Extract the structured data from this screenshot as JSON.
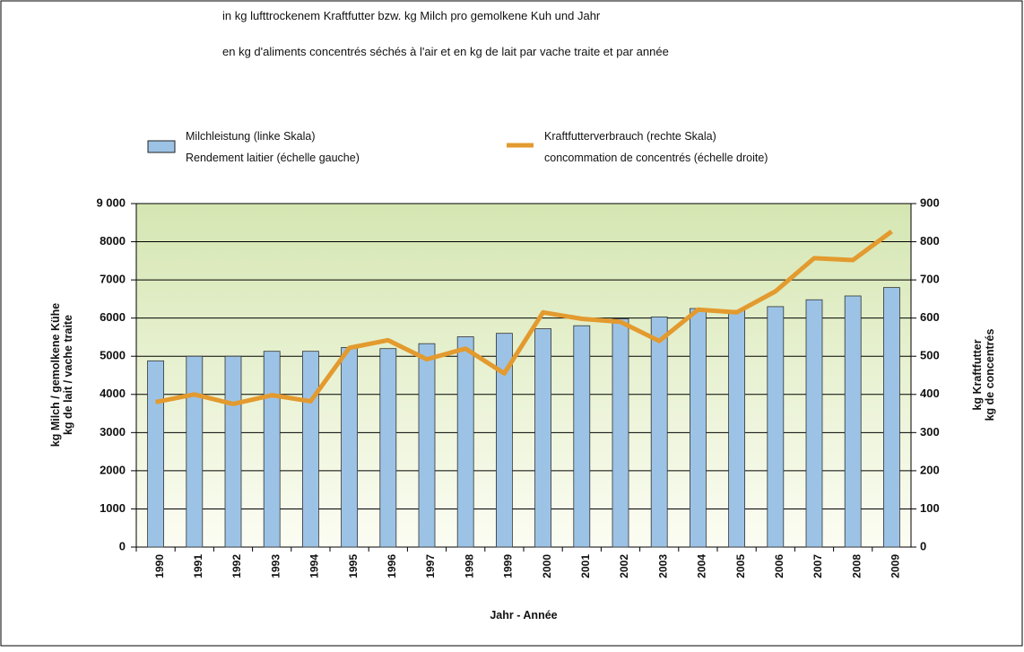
{
  "chart_data": {
    "type": "bar",
    "title": "in kg lufttrockenem Kraftfutter bzw. kg Milch pro gemolkene Kuh und Jahr",
    "subtitle": "en kg d'aliments concentrés séchés à l'air et en kg de lait par vache traite et par année",
    "xlabel": "Jahr  -  Année",
    "ylabel": [
      "kg Milch / gemolkene Kühe",
      "kg de lait / vache traite"
    ],
    "y2label": [
      "kg Kraftfutter",
      "kg de concentrés"
    ],
    "categories": [
      "1990",
      "1991",
      "1992",
      "1993",
      "1994",
      "1995",
      "1996",
      "1997",
      "1998",
      "1999",
      "2000",
      "2001",
      "2002",
      "2003",
      "2004",
      "2005",
      "2006",
      "2007",
      "2008",
      "2009"
    ],
    "series": [
      {
        "name": "Milchleistung (linke Skala)",
        "name_line2": "Rendement laitier (échelle gauche)",
        "type": "bar",
        "color": "#9cc3e5",
        "values": [
          4880,
          5000,
          5000,
          5130,
          5130,
          5230,
          5200,
          5330,
          5510,
          5600,
          5720,
          5800,
          5980,
          6030,
          6250,
          6200,
          6300,
          6480,
          6580,
          6800
        ]
      },
      {
        "name": "Kraftfutterverbrauch (rechte Skala)",
        "name_line2": "concommation de concentrés (échelle droite)",
        "type": "line",
        "axis": "y2",
        "color": "#e39a2e",
        "values": [
          380,
          400,
          375,
          398,
          382,
          522,
          542,
          492,
          520,
          455,
          615,
          598,
          590,
          540,
          622,
          615,
          670,
          757,
          752,
          827
        ]
      }
    ],
    "ylim": [
      0,
      9000
    ],
    "yticks": [
      0,
      1000,
      2000,
      3000,
      4000,
      5000,
      6000,
      7000,
      8000,
      {
        "value": 9000,
        "label": "9 000"
      }
    ],
    "y2lim": [
      0,
      900
    ],
    "y2ticks": [
      0,
      100,
      200,
      300,
      400,
      500,
      600,
      700,
      800,
      900
    ],
    "grid": true
  }
}
